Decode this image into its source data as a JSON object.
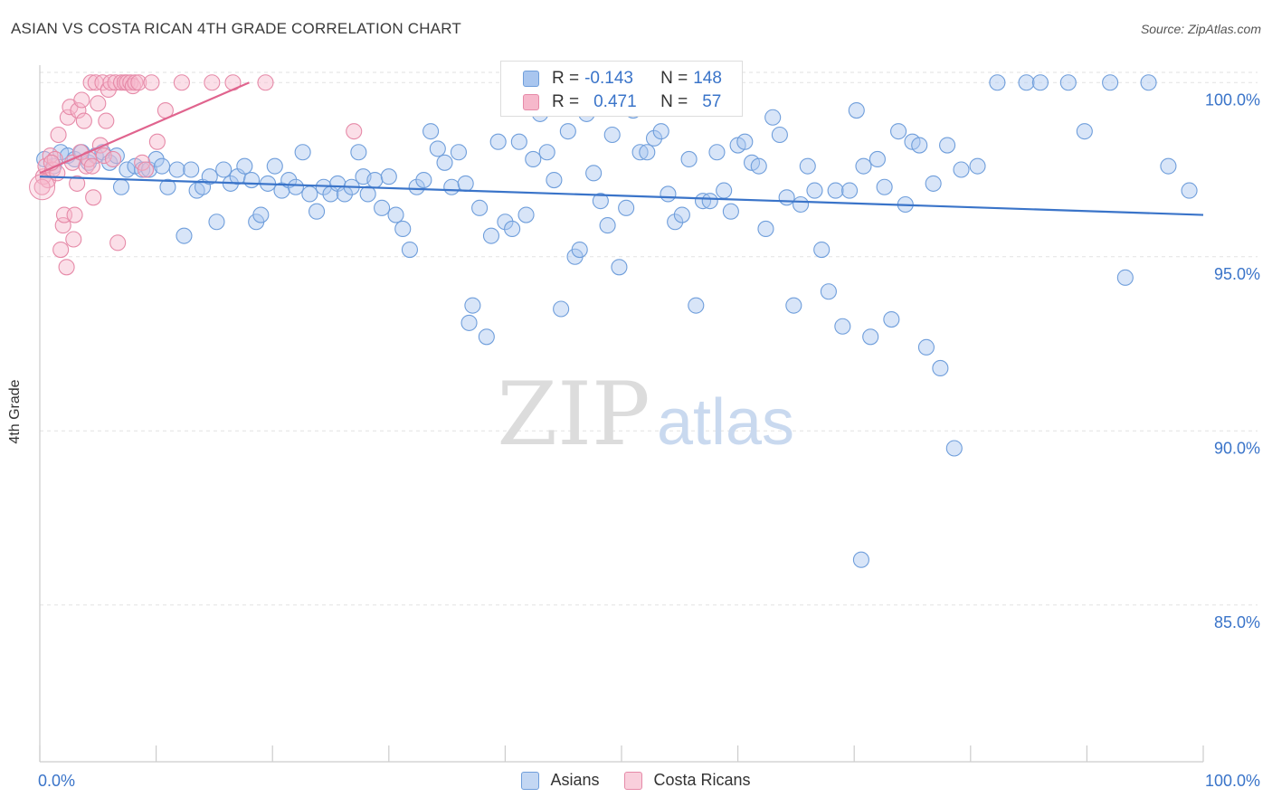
{
  "header": {
    "title": "ASIAN VS COSTA RICAN 4TH GRADE CORRELATION CHART",
    "source": "Source: ZipAtlas.com"
  },
  "watermark": {
    "zip": "ZIP",
    "atlas": "atlas"
  },
  "legend": {
    "r_label": "R =",
    "n_label": "N =",
    "rows": [
      {
        "r": "-0.143",
        "n": "148",
        "fill": "#a9c6ef",
        "stroke": "#6f9edb"
      },
      {
        "r": "0.471",
        "n": "57",
        "fill": "#f6b8cb",
        "stroke": "#e68aa8"
      }
    ]
  },
  "chart_data": {
    "type": "scatter",
    "title": "ASIAN VS COSTA RICAN 4TH GRADE CORRELATION CHART",
    "xlabel": "",
    "ylabel": "4th Grade",
    "xlim": [
      0,
      100
    ],
    "ylim": [
      80.5,
      100.5
    ],
    "x_ticks": [
      "0.0%",
      "100.0%"
    ],
    "y_ticks": [
      {
        "value": 100,
        "label": "100.0%"
      },
      {
        "value": 95,
        "label": "95.0%"
      },
      {
        "value": 90,
        "label": "90.0%"
      },
      {
        "value": 85,
        "label": "85.0%"
      }
    ],
    "grid": true,
    "legend_position": "bottom",
    "colors": {
      "accent": "#3a74c9",
      "blue_line": "#3a74c9",
      "pink_line": "#e0648e",
      "axis_text": "#3a74c9"
    },
    "series": [
      {
        "name": "Asians",
        "color": "#6f9edb",
        "fill": "#a9c6ef",
        "trend": {
          "x": [
            0,
            100
          ],
          "y": [
            97.3,
            96.2
          ]
        },
        "points": [
          [
            0.4,
            97.8
          ],
          [
            1.2,
            97.6
          ],
          [
            1.8,
            98.0
          ],
          [
            2.4,
            97.9
          ],
          [
            3.0,
            97.8
          ],
          [
            3.6,
            98.0
          ],
          [
            4.2,
            97.7
          ],
          [
            4.8,
            97.9
          ],
          [
            5.4,
            98.0
          ],
          [
            6.0,
            97.7
          ],
          [
            6.6,
            97.9
          ],
          [
            7.0,
            97.0
          ],
          [
            7.5,
            97.5
          ],
          [
            8.2,
            97.6
          ],
          [
            8.8,
            97.5
          ],
          [
            9.4,
            97.5
          ],
          [
            10.0,
            97.8
          ],
          [
            10.5,
            97.6
          ],
          [
            11.0,
            97.0
          ],
          [
            11.8,
            97.5
          ],
          [
            12.4,
            95.6
          ],
          [
            13.0,
            97.5
          ],
          [
            13.5,
            96.9
          ],
          [
            14.0,
            97.0
          ],
          [
            14.6,
            97.3
          ],
          [
            15.2,
            96.0
          ],
          [
            15.8,
            97.5
          ],
          [
            16.4,
            97.1
          ],
          [
            17.0,
            97.3
          ],
          [
            17.6,
            97.6
          ],
          [
            18.2,
            97.2
          ],
          [
            18.6,
            96.0
          ],
          [
            19.0,
            96.2
          ],
          [
            19.6,
            97.1
          ],
          [
            20.2,
            97.6
          ],
          [
            20.8,
            96.9
          ],
          [
            21.4,
            97.2
          ],
          [
            22.0,
            97.0
          ],
          [
            22.6,
            98.0
          ],
          [
            23.2,
            96.8
          ],
          [
            23.8,
            96.3
          ],
          [
            24.4,
            97.0
          ],
          [
            25.0,
            96.8
          ],
          [
            25.6,
            97.1
          ],
          [
            26.2,
            96.8
          ],
          [
            26.8,
            97.0
          ],
          [
            27.4,
            98.0
          ],
          [
            27.8,
            97.3
          ],
          [
            28.2,
            96.8
          ],
          [
            28.8,
            97.2
          ],
          [
            29.4,
            96.4
          ],
          [
            30.0,
            97.3
          ],
          [
            30.6,
            96.2
          ],
          [
            31.2,
            95.8
          ],
          [
            31.8,
            95.2
          ],
          [
            32.4,
            97.0
          ],
          [
            33.0,
            97.2
          ],
          [
            33.6,
            98.6
          ],
          [
            34.2,
            98.1
          ],
          [
            34.8,
            97.7
          ],
          [
            35.4,
            97.0
          ],
          [
            36.0,
            98.0
          ],
          [
            36.6,
            97.1
          ],
          [
            37.2,
            93.6
          ],
          [
            37.8,
            96.4
          ],
          [
            38.4,
            92.7
          ],
          [
            38.8,
            95.6
          ],
          [
            39.4,
            98.3
          ],
          [
            40.0,
            96.0
          ],
          [
            40.6,
            95.8
          ],
          [
            41.2,
            98.3
          ],
          [
            41.8,
            96.2
          ],
          [
            42.4,
            97.8
          ],
          [
            43.0,
            99.1
          ],
          [
            43.6,
            98.0
          ],
          [
            44.2,
            97.2
          ],
          [
            44.8,
            93.5
          ],
          [
            45.4,
            98.6
          ],
          [
            46.0,
            95.0
          ],
          [
            46.4,
            95.2
          ],
          [
            47.0,
            99.1
          ],
          [
            47.6,
            97.4
          ],
          [
            48.2,
            96.6
          ],
          [
            48.8,
            95.9
          ],
          [
            49.2,
            98.5
          ],
          [
            49.8,
            94.7
          ],
          [
            50.4,
            96.4
          ],
          [
            51.0,
            99.2
          ],
          [
            51.6,
            98.0
          ],
          [
            52.2,
            98.0
          ],
          [
            52.8,
            98.4
          ],
          [
            53.4,
            98.6
          ],
          [
            54.0,
            96.8
          ],
          [
            54.6,
            96.0
          ],
          [
            55.2,
            96.2
          ],
          [
            55.8,
            97.8
          ],
          [
            56.4,
            93.6
          ],
          [
            57.0,
            96.6
          ],
          [
            57.6,
            96.6
          ],
          [
            58.2,
            98.0
          ],
          [
            58.8,
            96.9
          ],
          [
            59.4,
            96.3
          ],
          [
            60.0,
            98.2
          ],
          [
            60.6,
            98.3
          ],
          [
            61.2,
            97.7
          ],
          [
            61.8,
            97.6
          ],
          [
            62.4,
            95.8
          ],
          [
            63.0,
            99.0
          ],
          [
            63.6,
            98.5
          ],
          [
            64.2,
            96.7
          ],
          [
            64.8,
            93.6
          ],
          [
            65.4,
            96.5
          ],
          [
            66.0,
            97.6
          ],
          [
            66.6,
            96.9
          ],
          [
            67.2,
            95.2
          ],
          [
            67.8,
            94.0
          ],
          [
            68.4,
            96.9
          ],
          [
            69.0,
            93.0
          ],
          [
            69.6,
            96.9
          ],
          [
            70.2,
            99.2
          ],
          [
            70.8,
            97.6
          ],
          [
            71.4,
            92.7
          ],
          [
            72.0,
            97.8
          ],
          [
            72.6,
            97.0
          ],
          [
            73.2,
            93.2
          ],
          [
            73.8,
            98.6
          ],
          [
            74.4,
            96.5
          ],
          [
            75.0,
            98.3
          ],
          [
            75.6,
            98.2
          ],
          [
            76.2,
            92.4
          ],
          [
            76.8,
            97.1
          ],
          [
            77.4,
            91.8
          ],
          [
            78.0,
            98.2
          ],
          [
            78.6,
            89.5
          ],
          [
            79.2,
            97.5
          ],
          [
            80.6,
            97.6
          ],
          [
            82.3,
            100.0
          ],
          [
            84.8,
            100.0
          ],
          [
            86.0,
            100.0
          ],
          [
            88.4,
            100.0
          ],
          [
            89.8,
            98.6
          ],
          [
            92.0,
            100.0
          ],
          [
            93.3,
            94.4
          ],
          [
            95.3,
            100.0
          ],
          [
            97.0,
            97.6
          ],
          [
            98.8,
            96.9
          ],
          [
            70.6,
            86.3
          ],
          [
            36.9,
            93.1
          ]
        ]
      },
      {
        "name": "Costa Ricans",
        "color": "#e68aa8",
        "fill": "#f6b8cb",
        "trend": {
          "x": [
            0,
            18
          ],
          "y": [
            97.4,
            100.0
          ]
        },
        "points": [
          [
            0.3,
            97.3
          ],
          [
            0.5,
            97.6
          ],
          [
            0.7,
            97.2
          ],
          [
            0.9,
            97.9
          ],
          [
            1.1,
            97.5
          ],
          [
            1.3,
            97.8
          ],
          [
            1.5,
            97.4
          ],
          [
            1.6,
            98.5
          ],
          [
            1.8,
            95.2
          ],
          [
            2.0,
            95.9
          ],
          [
            2.1,
            96.2
          ],
          [
            2.3,
            94.7
          ],
          [
            2.4,
            99.0
          ],
          [
            2.6,
            99.3
          ],
          [
            2.8,
            97.7
          ],
          [
            2.9,
            95.5
          ],
          [
            3.0,
            96.2
          ],
          [
            3.2,
            97.1
          ],
          [
            3.3,
            99.2
          ],
          [
            3.5,
            98.0
          ],
          [
            3.6,
            99.5
          ],
          [
            3.8,
            98.9
          ],
          [
            4.0,
            97.6
          ],
          [
            4.2,
            97.8
          ],
          [
            4.4,
            100.0
          ],
          [
            4.5,
            97.6
          ],
          [
            4.6,
            96.7
          ],
          [
            4.8,
            100.0
          ],
          [
            5.0,
            99.4
          ],
          [
            5.2,
            98.2
          ],
          [
            5.4,
            100.0
          ],
          [
            5.5,
            97.9
          ],
          [
            5.7,
            98.9
          ],
          [
            5.9,
            99.8
          ],
          [
            6.1,
            100.0
          ],
          [
            6.3,
            97.8
          ],
          [
            6.5,
            100.0
          ],
          [
            6.7,
            95.4
          ],
          [
            7.0,
            100.0
          ],
          [
            7.3,
            100.0
          ],
          [
            7.5,
            100.0
          ],
          [
            7.8,
            100.0
          ],
          [
            8.0,
            99.9
          ],
          [
            8.2,
            100.0
          ],
          [
            8.5,
            100.0
          ],
          [
            8.8,
            97.7
          ],
          [
            9.1,
            97.5
          ],
          [
            9.6,
            100.0
          ],
          [
            10.1,
            98.3
          ],
          [
            10.8,
            99.2
          ],
          [
            12.2,
            100.0
          ],
          [
            14.8,
            100.0
          ],
          [
            16.6,
            100.0
          ],
          [
            19.4,
            100.0
          ],
          [
            27.0,
            98.6
          ],
          [
            0.2,
            97.0
          ],
          [
            1.0,
            97.7
          ]
        ]
      }
    ]
  }
}
